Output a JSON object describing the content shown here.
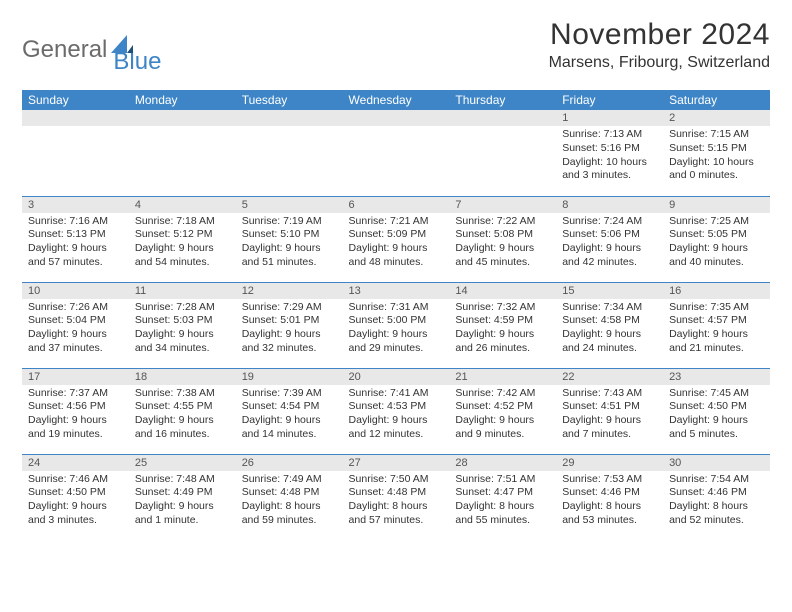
{
  "logo": {
    "text1": "General",
    "text2": "Blue"
  },
  "title": "November 2024",
  "location": "Marsens, Fribourg, Switzerland",
  "colors": {
    "header_bg": "#3d85c6",
    "header_text": "#ffffff",
    "daynum_bg": "#e8e8e8",
    "border": "#3d85c6",
    "body_text": "#333333",
    "logo_gray": "#6b6b6b",
    "logo_blue": "#3d85c6",
    "page_bg": "#ffffff"
  },
  "typography": {
    "title_fontsize": 30,
    "location_fontsize": 16,
    "dayheader_fontsize": 12,
    "cell_fontsize": 10.5
  },
  "day_headers": [
    "Sunday",
    "Monday",
    "Tuesday",
    "Wednesday",
    "Thursday",
    "Friday",
    "Saturday"
  ],
  "weeks": [
    [
      null,
      null,
      null,
      null,
      null,
      {
        "n": "1",
        "sr": "Sunrise: 7:13 AM",
        "ss": "Sunset: 5:16 PM",
        "dl": "Daylight: 10 hours and 3 minutes."
      },
      {
        "n": "2",
        "sr": "Sunrise: 7:15 AM",
        "ss": "Sunset: 5:15 PM",
        "dl": "Daylight: 10 hours and 0 minutes."
      }
    ],
    [
      {
        "n": "3",
        "sr": "Sunrise: 7:16 AM",
        "ss": "Sunset: 5:13 PM",
        "dl": "Daylight: 9 hours and 57 minutes."
      },
      {
        "n": "4",
        "sr": "Sunrise: 7:18 AM",
        "ss": "Sunset: 5:12 PM",
        "dl": "Daylight: 9 hours and 54 minutes."
      },
      {
        "n": "5",
        "sr": "Sunrise: 7:19 AM",
        "ss": "Sunset: 5:10 PM",
        "dl": "Daylight: 9 hours and 51 minutes."
      },
      {
        "n": "6",
        "sr": "Sunrise: 7:21 AM",
        "ss": "Sunset: 5:09 PM",
        "dl": "Daylight: 9 hours and 48 minutes."
      },
      {
        "n": "7",
        "sr": "Sunrise: 7:22 AM",
        "ss": "Sunset: 5:08 PM",
        "dl": "Daylight: 9 hours and 45 minutes."
      },
      {
        "n": "8",
        "sr": "Sunrise: 7:24 AM",
        "ss": "Sunset: 5:06 PM",
        "dl": "Daylight: 9 hours and 42 minutes."
      },
      {
        "n": "9",
        "sr": "Sunrise: 7:25 AM",
        "ss": "Sunset: 5:05 PM",
        "dl": "Daylight: 9 hours and 40 minutes."
      }
    ],
    [
      {
        "n": "10",
        "sr": "Sunrise: 7:26 AM",
        "ss": "Sunset: 5:04 PM",
        "dl": "Daylight: 9 hours and 37 minutes."
      },
      {
        "n": "11",
        "sr": "Sunrise: 7:28 AM",
        "ss": "Sunset: 5:03 PM",
        "dl": "Daylight: 9 hours and 34 minutes."
      },
      {
        "n": "12",
        "sr": "Sunrise: 7:29 AM",
        "ss": "Sunset: 5:01 PM",
        "dl": "Daylight: 9 hours and 32 minutes."
      },
      {
        "n": "13",
        "sr": "Sunrise: 7:31 AM",
        "ss": "Sunset: 5:00 PM",
        "dl": "Daylight: 9 hours and 29 minutes."
      },
      {
        "n": "14",
        "sr": "Sunrise: 7:32 AM",
        "ss": "Sunset: 4:59 PM",
        "dl": "Daylight: 9 hours and 26 minutes."
      },
      {
        "n": "15",
        "sr": "Sunrise: 7:34 AM",
        "ss": "Sunset: 4:58 PM",
        "dl": "Daylight: 9 hours and 24 minutes."
      },
      {
        "n": "16",
        "sr": "Sunrise: 7:35 AM",
        "ss": "Sunset: 4:57 PM",
        "dl": "Daylight: 9 hours and 21 minutes."
      }
    ],
    [
      {
        "n": "17",
        "sr": "Sunrise: 7:37 AM",
        "ss": "Sunset: 4:56 PM",
        "dl": "Daylight: 9 hours and 19 minutes."
      },
      {
        "n": "18",
        "sr": "Sunrise: 7:38 AM",
        "ss": "Sunset: 4:55 PM",
        "dl": "Daylight: 9 hours and 16 minutes."
      },
      {
        "n": "19",
        "sr": "Sunrise: 7:39 AM",
        "ss": "Sunset: 4:54 PM",
        "dl": "Daylight: 9 hours and 14 minutes."
      },
      {
        "n": "20",
        "sr": "Sunrise: 7:41 AM",
        "ss": "Sunset: 4:53 PM",
        "dl": "Daylight: 9 hours and 12 minutes."
      },
      {
        "n": "21",
        "sr": "Sunrise: 7:42 AM",
        "ss": "Sunset: 4:52 PM",
        "dl": "Daylight: 9 hours and 9 minutes."
      },
      {
        "n": "22",
        "sr": "Sunrise: 7:43 AM",
        "ss": "Sunset: 4:51 PM",
        "dl": "Daylight: 9 hours and 7 minutes."
      },
      {
        "n": "23",
        "sr": "Sunrise: 7:45 AM",
        "ss": "Sunset: 4:50 PM",
        "dl": "Daylight: 9 hours and 5 minutes."
      }
    ],
    [
      {
        "n": "24",
        "sr": "Sunrise: 7:46 AM",
        "ss": "Sunset: 4:50 PM",
        "dl": "Daylight: 9 hours and 3 minutes."
      },
      {
        "n": "25",
        "sr": "Sunrise: 7:48 AM",
        "ss": "Sunset: 4:49 PM",
        "dl": "Daylight: 9 hours and 1 minute."
      },
      {
        "n": "26",
        "sr": "Sunrise: 7:49 AM",
        "ss": "Sunset: 4:48 PM",
        "dl": "Daylight: 8 hours and 59 minutes."
      },
      {
        "n": "27",
        "sr": "Sunrise: 7:50 AM",
        "ss": "Sunset: 4:48 PM",
        "dl": "Daylight: 8 hours and 57 minutes."
      },
      {
        "n": "28",
        "sr": "Sunrise: 7:51 AM",
        "ss": "Sunset: 4:47 PM",
        "dl": "Daylight: 8 hours and 55 minutes."
      },
      {
        "n": "29",
        "sr": "Sunrise: 7:53 AM",
        "ss": "Sunset: 4:46 PM",
        "dl": "Daylight: 8 hours and 53 minutes."
      },
      {
        "n": "30",
        "sr": "Sunrise: 7:54 AM",
        "ss": "Sunset: 4:46 PM",
        "dl": "Daylight: 8 hours and 52 minutes."
      }
    ]
  ]
}
